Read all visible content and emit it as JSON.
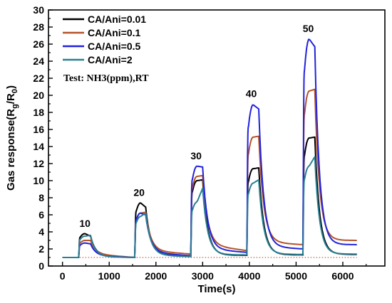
{
  "chart_data": {
    "type": "line",
    "title": "",
    "xlabel": "Time(s)",
    "ylabel_main": "Gas response(R",
    "ylabel_sub": "g",
    "ylabel_mid": "/R",
    "ylabel_sub2": "0",
    "ylabel_end": ")",
    "xlim": [
      -300,
      6900
    ],
    "ylim": [
      0,
      30
    ],
    "x_ticks": [
      0,
      1000,
      2000,
      3000,
      4000,
      5000,
      6000
    ],
    "x_tick_labels": [
      "0",
      "1000",
      "2000",
      "3000",
      "4000",
      "5000",
      "6000"
    ],
    "y_ticks": [
      0,
      2,
      4,
      6,
      8,
      10,
      12,
      14,
      16,
      18,
      20,
      22,
      24,
      26,
      28,
      30
    ],
    "y_tick_labels": [
      "0",
      "2",
      "4",
      "6",
      "8",
      "10",
      "12",
      "14",
      "16",
      "18",
      "20",
      "22",
      "24",
      "26",
      "28",
      "30"
    ],
    "grid": false,
    "legend_position": "top-left",
    "annotation_note": "Test: NH3(ppm),RT",
    "baseline_reference": {
      "y": 1.0,
      "color": "#c03030"
    },
    "concentration_labels": [
      {
        "text": "10",
        "x": 480,
        "y": 4.6
      },
      {
        "text": "20",
        "x": 1640,
        "y": 8.2
      },
      {
        "text": "30",
        "x": 2860,
        "y": 12.5
      },
      {
        "text": "40",
        "x": 4040,
        "y": 19.8
      },
      {
        "text": "50",
        "x": 5260,
        "y": 27.4
      }
    ],
    "pulses": [
      {
        "conc": 10,
        "on": 350,
        "off": 600
      },
      {
        "conc": 20,
        "on": 1550,
        "off": 1780
      },
      {
        "conc": 30,
        "on": 2750,
        "off": 3000
      },
      {
        "conc": 40,
        "on": 3950,
        "off": 4200
      },
      {
        "conc": 50,
        "on": 5150,
        "off": 5400
      }
    ],
    "x_start": 0,
    "x_end": 6300,
    "series": [
      {
        "name": "CA/Ani=0.01",
        "color": "#000000",
        "baseline": [
          1.0,
          1.0,
          1.2,
          1.25,
          1.3,
          1.35
        ],
        "rise": [
          3.8,
          7.4,
          10.0,
          11.4,
          15.0
        ],
        "end": [
          3.5,
          6.9,
          10.1,
          11.5,
          15.1
        ],
        "tail": [
          1.2,
          1.25,
          1.3,
          1.35,
          1.4
        ]
      },
      {
        "name": "CA/Ani=0.1",
        "color": "#b5532a",
        "baseline": [
          1.0,
          1.0,
          1.4,
          1.8,
          2.5,
          3.0
        ],
        "rise": [
          3.0,
          6.2,
          10.5,
          15.1,
          20.5
        ],
        "end": [
          3.0,
          6.3,
          10.6,
          15.2,
          20.7
        ],
        "tail": [
          1.4,
          1.8,
          2.5,
          2.8,
          3.0
        ]
      },
      {
        "name": "CA/Ani=0.5",
        "color": "#2222dd",
        "baseline": [
          1.0,
          1.0,
          1.2,
          1.6,
          2.0,
          2.5
        ],
        "rise": [
          2.7,
          6.2,
          11.7,
          18.9,
          26.6
        ],
        "end": [
          2.6,
          6.0,
          11.6,
          18.4,
          25.7
        ],
        "tail": [
          1.2,
          1.6,
          2.0,
          2.3,
          2.5
        ]
      },
      {
        "name": "CA/Ani=2",
        "color": "#2a7f94",
        "baseline": [
          1.0,
          1.0,
          1.1,
          1.3,
          1.35,
          1.4
        ],
        "rise": [
          3.5,
          5.8,
          7.5,
          9.7,
          11.7
        ],
        "end": [
          3.6,
          6.2,
          9.1,
          10.1,
          12.8
        ],
        "tail": [
          1.1,
          1.3,
          1.35,
          1.4,
          1.4
        ]
      }
    ]
  }
}
